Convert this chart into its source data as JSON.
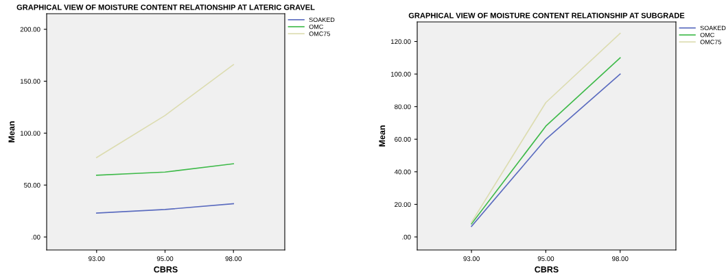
{
  "chart_data": [
    {
      "type": "line",
      "title": "GRAPHICAL VIEW OF MOISTURE CONTENT RELATIONSHIP AT LATERIC GRAVEL",
      "xlabel": "CBRS",
      "ylabel": "Mean",
      "categories": [
        "93.00",
        "95.00",
        "98.00"
      ],
      "series": [
        {
          "name": "SOAKED",
          "color": "#5a6bbf",
          "values": [
            23,
            26.5,
            32
          ]
        },
        {
          "name": "OMC",
          "color": "#3fba4a",
          "values": [
            59.5,
            62.5,
            70.5
          ]
        },
        {
          "name": "OMC75",
          "color": "#dcdcb0",
          "values": [
            76.5,
            117,
            166
          ]
        }
      ],
      "ylim": [
        -12.5,
        215
      ],
      "yticks": [
        {
          "value": 0,
          "label": ".00"
        },
        {
          "value": 50,
          "label": "50.00"
        },
        {
          "value": 100,
          "label": "100.00"
        },
        {
          "value": 150,
          "label": "150.00"
        },
        {
          "value": 200,
          "label": "200.00"
        }
      ],
      "grid": false,
      "legend": "top right",
      "marker": "none",
      "line_style": "solid"
    },
    {
      "type": "line",
      "title": "GRAPHICAL VIEW OF MOISTURE CONTENT RELATIONSHIP AT SUBGRADE",
      "xlabel": "CBRS",
      "ylabel": "Mean",
      "categories": [
        "93.00",
        "95.00",
        "98.00"
      ],
      "series": [
        {
          "name": "SOAKED",
          "color": "#5a6bbf",
          "values": [
            6.5,
            60,
            100
          ]
        },
        {
          "name": "OMC",
          "color": "#3fba4a",
          "values": [
            8,
            68,
            110
          ]
        },
        {
          "name": "OMC75",
          "color": "#dcdcb0",
          "values": [
            9,
            82.5,
            125
          ]
        }
      ],
      "ylim": [
        -8,
        132
      ],
      "yticks": [
        {
          "value": 0,
          "label": ".00"
        },
        {
          "value": 20,
          "label": "20.00"
        },
        {
          "value": 40,
          "label": "40.00"
        },
        {
          "value": 60,
          "label": "60.00"
        },
        {
          "value": 80,
          "label": "80.00"
        },
        {
          "value": 100,
          "label": "100.00"
        },
        {
          "value": 120,
          "label": "120.00"
        }
      ],
      "grid": false,
      "legend": "top right",
      "marker": "none",
      "line_style": "solid"
    }
  ]
}
